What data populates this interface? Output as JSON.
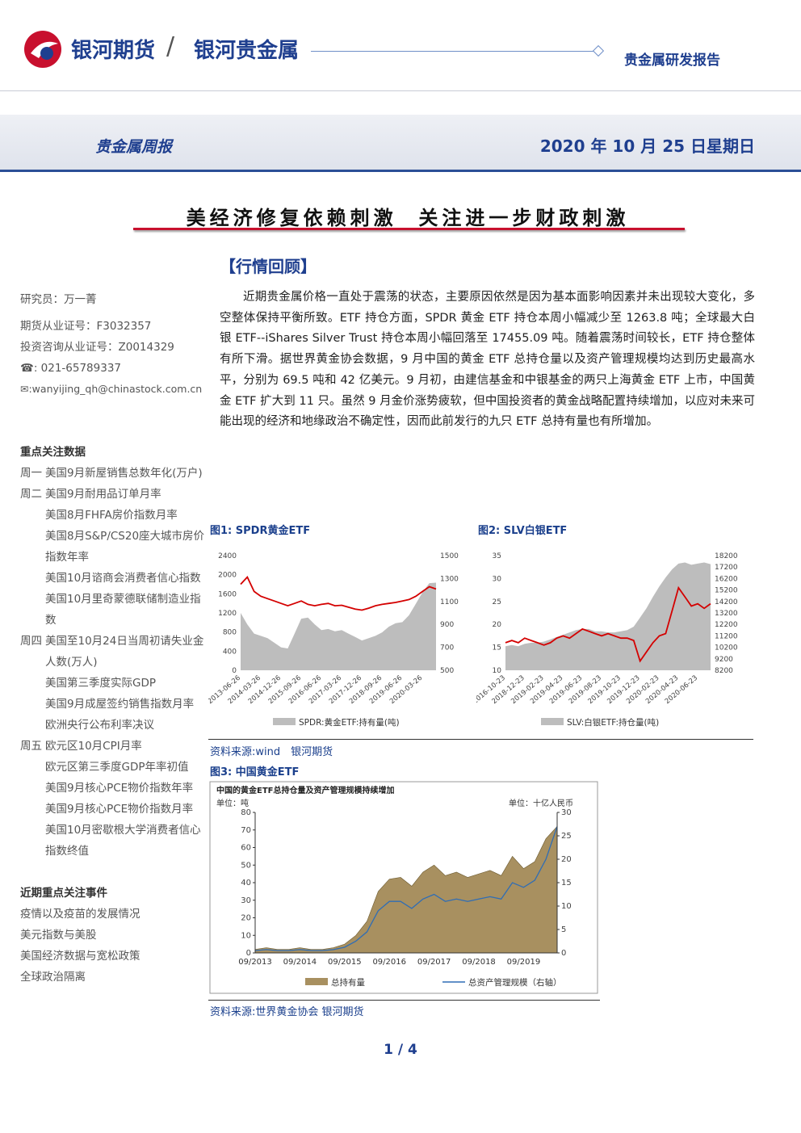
{
  "header": {
    "company": "银河期货",
    "separator": "/",
    "division": "银河贵金属",
    "report_type": "贵金属研发报告",
    "report_name": "贵金属周报",
    "date": "2020 年 10 月 25 日星期日"
  },
  "title": "美经济修复依赖刺激  关注进一步财政刺激",
  "sidebar": {
    "analyst": "研究员：万一菁",
    "futures_license": "期货从业证号：F3032357",
    "advisory_license": "投资咨询从业证号：Z0014329",
    "phone": "☎: 021-65789337",
    "email": "✉:wanyijing_qh@chinastock.com.cn",
    "data_heading": "重点关注数据",
    "schedule": [
      {
        "day": "周一",
        "items": [
          "美国9月新屋销售总数年化(万户)"
        ]
      },
      {
        "day": "周二",
        "items": [
          "美国9月耐用品订单月率",
          "美国8月FHFA房价指数月率",
          "美国8月S&P/CS20座大城市房价指数年率",
          "美国10月谘商会消费者信心指数",
          "美国10月里奇蒙德联储制造业指数"
        ]
      },
      {
        "day": "周四",
        "items": [
          "美国至10月24日当周初请失业金人数(万人)",
          "美国第三季度实际GDP",
          "美国9月成屋签约销售指数月率",
          "欧洲央行公布利率决议"
        ]
      },
      {
        "day": "周五",
        "items": [
          "欧元区10月CPI月率",
          "欧元区第三季度GDP年率初值",
          "美国9月核心PCE物价指数年率",
          "美国9月核心PCE物价指数月率",
          "美国10月密歇根大学消费者信心指数终值"
        ]
      }
    ],
    "events_heading": "近期重点关注事件",
    "events": [
      "疫情以及疫苗的发展情况",
      "美元指数与美股",
      "美国经济数据与宽松政策",
      "全球政治隔离"
    ]
  },
  "section": "【行情回顾】",
  "paragraph": "近期贵金属价格一直处于震荡的状态，主要原因依然是因为基本面影响因素并未出现较大变化，多空整体保持平衡所致。ETF 持仓方面，SPDR 黄金 ETF 持仓本周小幅减少至 1263.8 吨；全球最大白银 ETF--iShares Silver Trust 持仓本周小幅回落至 17455.09 吨。随着震荡时间较长，ETF 持仓整体有所下滑。据世界黄金协会数据，9 月中国的黄金 ETF 总持仓量以及资产管理规模均达到历史最高水平，分别为 69.5 吨和 42 亿美元。9 月初，由建信基金和中银基金的两只上海黄金 ETF 上市，中国黄金 ETF 扩大到 11 只。虽然 9 月金价涨势疲软，但中国投资者的黄金战略配置持续增加，以应对未来可能出现的经济和地缘政治不确定性，因而此前发行的九只 ETF 总持有量也有所增加。",
  "figures": {
    "fig1": "图1: SPDR黄金ETF",
    "fig2": "图2: SLV白银ETF",
    "source12": "资料来源:wind　银河期货",
    "fig3": "图3: 中国黄金ETF",
    "source3": "资料来源:世界黄金协会 银河期货"
  },
  "page": "1 / 4",
  "chart_data": [
    {
      "type": "line",
      "categories": [
        "2013-06-26",
        null,
        null,
        "2014-03-26",
        null,
        null,
        "2014-12-26",
        null,
        null,
        "2015-09-26",
        null,
        null,
        "2016-06-26",
        null,
        null,
        "2017-03-26",
        null,
        null,
        "2017-12-26",
        null,
        null,
        "2018-09-26",
        null,
        null,
        "2019-06-26",
        null,
        null,
        "2020-03-26",
        null,
        null
      ],
      "ylim": [
        0,
        2400
      ],
      "yticks": [
        0,
        400,
        800,
        1200,
        1600,
        2000,
        2400
      ],
      "y2lim": [
        500,
        1500
      ],
      "y2ticks": [
        500,
        700,
        900,
        1100,
        1300,
        1500
      ],
      "series": [
        {
          "name": "SPDR:黄金ETF:持有量(吨)",
          "type": "area",
          "axis": "y2",
          "color": "#bdbdbd",
          "values": [
            1000,
            900,
            820,
            800,
            780,
            740,
            700,
            690,
            820,
            950,
            960,
            900,
            850,
            860,
            840,
            850,
            820,
            790,
            760,
            780,
            800,
            830,
            880,
            910,
            920,
            980,
            1080,
            1180,
            1260,
            1263.8
          ]
        },
        {
          "type": "line",
          "axis": "y",
          "color": "#d40000",
          "values": [
            1800,
            1950,
            1650,
            1550,
            1500,
            1450,
            1400,
            1350,
            1400,
            1450,
            1380,
            1350,
            1380,
            1400,
            1350,
            1360,
            1320,
            1280,
            1260,
            1300,
            1350,
            1380,
            1400,
            1420,
            1450,
            1480,
            1550,
            1650,
            1750,
            1700
          ]
        }
      ]
    },
    {
      "type": "line",
      "categories": [
        "2016-10-23",
        null,
        null,
        "2018-12-23",
        null,
        null,
        "2019-02-23",
        null,
        null,
        "2019-04-23",
        null,
        null,
        "2019-06-23",
        null,
        null,
        "2019-08-23",
        null,
        null,
        "2019-10-23",
        null,
        null,
        "2019-12-23",
        null,
        null,
        "2020-02-23",
        null,
        null,
        "2020-04-23",
        null,
        null,
        "2020-06-23",
        null,
        null
      ],
      "ylim": [
        10,
        35
      ],
      "yticks": [
        10,
        15,
        20,
        25,
        30,
        35
      ],
      "y2lim": [
        8200,
        18200
      ],
      "y2ticks": [
        8200,
        9200,
        10200,
        11200,
        12200,
        13200,
        14200,
        15200,
        16200,
        17200,
        18200
      ],
      "series": [
        {
          "name": "SLV:白银ETF:持仓量(吨)",
          "type": "area",
          "axis": "y2",
          "color": "#bdbdbd",
          "values": [
            10300,
            10400,
            10300,
            10500,
            10600,
            10600,
            10700,
            10900,
            11100,
            11300,
            11500,
            11700,
            11800,
            11800,
            11600,
            11600,
            11500,
            11500,
            11600,
            11700,
            12000,
            12800,
            13600,
            14600,
            15500,
            16300,
            17000,
            17500,
            17600,
            17400,
            17500,
            17600,
            17455.09
          ]
        },
        {
          "type": "line",
          "axis": "y",
          "color": "#d40000",
          "values": [
            16,
            16.5,
            16,
            17,
            16.5,
            16,
            15.5,
            16,
            17,
            17.5,
            17,
            18,
            19,
            18.5,
            18,
            17.5,
            18,
            17.5,
            17,
            17,
            16.5,
            12,
            14,
            16,
            17.5,
            18,
            23,
            28,
            26,
            24,
            24.5,
            23.5,
            24.5
          ]
        }
      ]
    },
    {
      "type": "line",
      "subtitle": "中国的黄金ETF总持仓量及资产管理规模持续增加",
      "y_label": "单位：吨",
      "y2_label": "单位：十亿人民币",
      "categories": [
        "09/2013",
        null,
        null,
        null,
        "09/2014",
        null,
        null,
        null,
        "09/2015",
        null,
        null,
        null,
        "09/2016",
        null,
        null,
        null,
        "09/2017",
        null,
        null,
        null,
        "09/2018",
        null,
        null,
        null,
        "09/2019",
        null,
        null,
        null
      ],
      "ylim": [
        0,
        80
      ],
      "yticks": [
        0,
        10,
        20,
        30,
        40,
        50,
        60,
        70,
        80
      ],
      "y2lim": [
        0,
        30
      ],
      "y2ticks": [
        0,
        5,
        10,
        15,
        20,
        25,
        30
      ],
      "series": [
        {
          "name": "总持有量",
          "type": "area",
          "axis": "y",
          "color": "#a89060",
          "values": [
            2,
            3,
            2,
            2,
            3,
            2,
            2,
            3,
            5,
            10,
            18,
            35,
            42,
            43,
            38,
            46,
            50,
            44,
            46,
            43,
            45,
            47,
            44,
            55,
            48,
            52,
            65,
            72
          ]
        },
        {
          "name": "总资产管理规模（右轴）",
          "type": "line",
          "axis": "y2",
          "color": "#2f6db5",
          "values": [
            0.5,
            0.7,
            0.5,
            0.5,
            0.7,
            0.5,
            0.5,
            0.7,
            1.2,
            2.5,
            4.5,
            9,
            11,
            11,
            9.5,
            11.5,
            12.5,
            11,
            11.5,
            11,
            11.5,
            12,
            11.5,
            15,
            14,
            15.5,
            20,
            27
          ]
        }
      ]
    }
  ]
}
